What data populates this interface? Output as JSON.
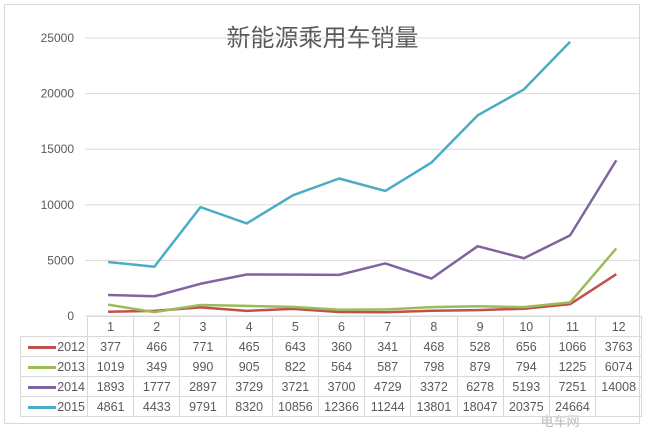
{
  "chart_data": {
    "type": "line",
    "title": "新能源乘用车销量",
    "categories": [
      "1",
      "2",
      "3",
      "4",
      "5",
      "6",
      "7",
      "8",
      "9",
      "10",
      "11",
      "12"
    ],
    "ylim": [
      0,
      25000
    ],
    "yticks": [
      "0",
      "5000",
      "10000",
      "15000",
      "20000",
      "25000"
    ],
    "grid": true,
    "legend": "data-table",
    "series": [
      {
        "name": "2012",
        "color": "#c0504d",
        "values": [
          377,
          466,
          771,
          465,
          643,
          360,
          341,
          468,
          528,
          656,
          1066,
          3763
        ]
      },
      {
        "name": "2013",
        "color": "#9bbb59",
        "values": [
          1019,
          349,
          990,
          905,
          822,
          564,
          587,
          798,
          879,
          794,
          1225,
          6074
        ]
      },
      {
        "name": "2014",
        "color": "#8064a2",
        "values": [
          1893,
          1777,
          2897,
          3729,
          3721,
          3700,
          4729,
          3372,
          6278,
          5193,
          7251,
          14008
        ]
      },
      {
        "name": "2015",
        "color": "#4bacc6",
        "values": [
          4861,
          4433,
          9791,
          8320,
          10856,
          12366,
          11244,
          13801,
          18047,
          20375,
          24664,
          null
        ]
      }
    ]
  },
  "watermark": "电车网"
}
